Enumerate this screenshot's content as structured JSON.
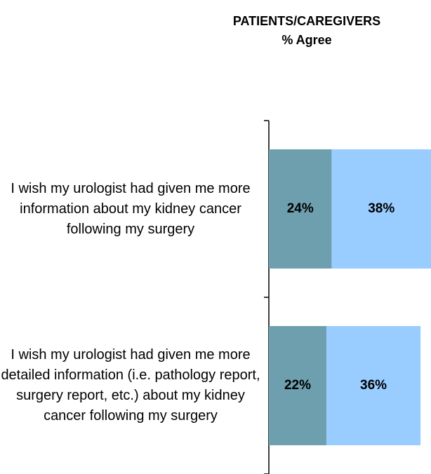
{
  "chart_data": {
    "type": "stacked_bar_horizontal",
    "title": "PATIENTS/CAREGIVERS",
    "subtitle": "% Agree",
    "categories": [
      "I wish my urologist had given me more information about my kidney cancer following my surgery",
      "I wish my urologist had given me more detailed information (i.e. pathology report, surgery report, etc.) about my kidney cancer following my surgery"
    ],
    "series": [
      {
        "color": "#6e9fae",
        "values": [
          24,
          22
        ],
        "value_labels": [
          "24%",
          "22%"
        ]
      },
      {
        "color": "#99ccff",
        "values": [
          38,
          36
        ],
        "value_labels": [
          "38%",
          "36%"
        ]
      }
    ],
    "xlim": [
      0,
      62
    ]
  }
}
